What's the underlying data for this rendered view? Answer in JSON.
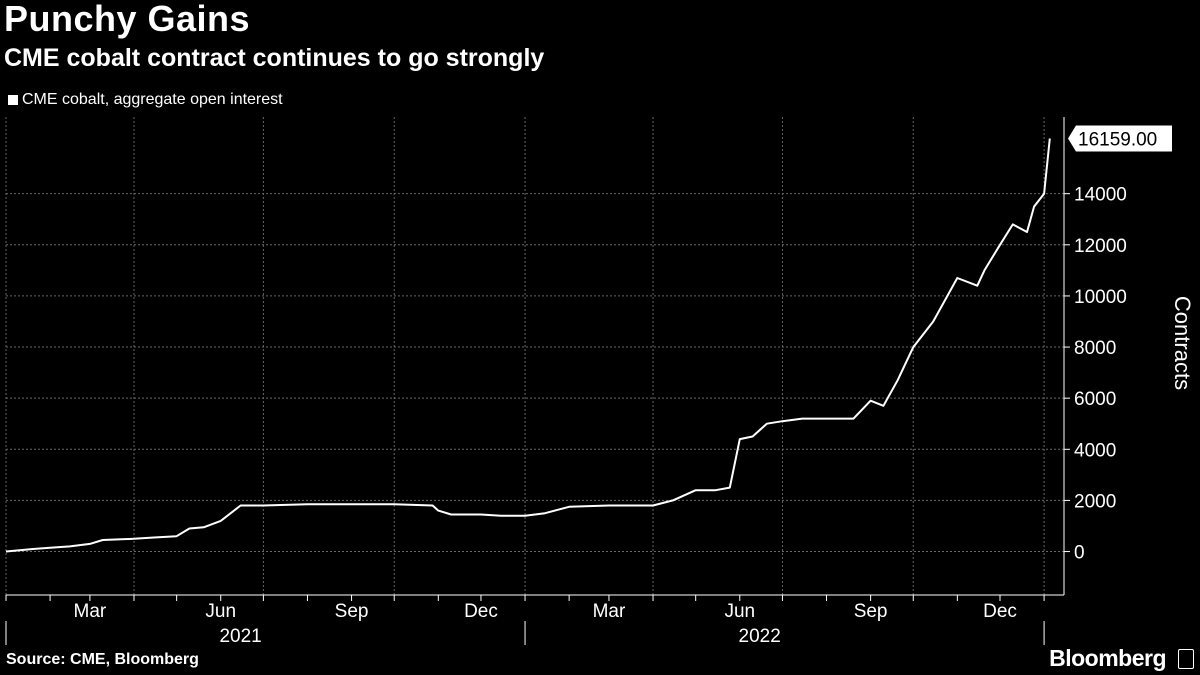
{
  "colors": {
    "background": "#000000",
    "line": "#ffffff",
    "grid": "#666666",
    "text": "#ffffff"
  },
  "chart_data": {
    "type": "line",
    "title": "Punchy Gains",
    "subtitle": "CME cobalt contract continues to go strongly",
    "legend": "CME cobalt, aggregate open interest",
    "ylabel": "Contracts",
    "xlabel": "",
    "ylim": [
      -1700,
      17000
    ],
    "y_ticks": [
      0,
      2000,
      4000,
      6000,
      8000,
      10000,
      12000,
      14000
    ],
    "y_tick_labels": [
      "0",
      "2000",
      "4000",
      "6000",
      "8000",
      "10000",
      "12000",
      "14000"
    ],
    "x_range": [
      "2021-01-01",
      "2023-01-15"
    ],
    "x_month_labels": [
      {
        "date": "2021-03-01",
        "label": "Mar"
      },
      {
        "date": "2021-06-01",
        "label": "Jun"
      },
      {
        "date": "2021-09-01",
        "label": "Sep"
      },
      {
        "date": "2021-12-01",
        "label": "Dec"
      },
      {
        "date": "2022-03-01",
        "label": "Mar"
      },
      {
        "date": "2022-06-01",
        "label": "Jun"
      },
      {
        "date": "2022-09-01",
        "label": "Sep"
      },
      {
        "date": "2022-12-01",
        "label": "Dec"
      }
    ],
    "x_year_labels": [
      {
        "date": "2021-06-15",
        "label": "2021"
      },
      {
        "date": "2022-06-15",
        "label": "2022"
      }
    ],
    "grid": true,
    "last_value": 16159.0,
    "last_value_label": "16159.00",
    "series": [
      {
        "name": "CME cobalt, aggregate open interest",
        "x": [
          "2021-01-01",
          "2021-01-20",
          "2021-02-01",
          "2021-02-15",
          "2021-03-01",
          "2021-03-10",
          "2021-04-01",
          "2021-04-15",
          "2021-05-01",
          "2021-05-10",
          "2021-05-20",
          "2021-06-01",
          "2021-06-15",
          "2021-07-01",
          "2021-08-01",
          "2021-09-01",
          "2021-10-01",
          "2021-10-28",
          "2021-11-01",
          "2021-11-10",
          "2021-12-01",
          "2021-12-15",
          "2022-01-01",
          "2022-01-15",
          "2022-02-01",
          "2022-03-01",
          "2022-03-20",
          "2022-04-01",
          "2022-04-15",
          "2022-05-01",
          "2022-05-15",
          "2022-05-25",
          "2022-06-01",
          "2022-06-10",
          "2022-06-20",
          "2022-07-01",
          "2022-07-15",
          "2022-08-01",
          "2022-08-20",
          "2022-09-01",
          "2022-09-10",
          "2022-09-20",
          "2022-10-01",
          "2022-10-15",
          "2022-10-25",
          "2022-11-01",
          "2022-11-15",
          "2022-11-20",
          "2022-12-01",
          "2022-12-10",
          "2022-12-20",
          "2022-12-25",
          "2023-01-01",
          "2023-01-05"
        ],
        "values": [
          0,
          100,
          150,
          200,
          300,
          450,
          500,
          550,
          600,
          900,
          950,
          1200,
          1800,
          1800,
          1850,
          1850,
          1850,
          1800,
          1600,
          1450,
          1450,
          1400,
          1400,
          1500,
          1750,
          1800,
          1800,
          1800,
          2000,
          2400,
          2400,
          2500,
          4400,
          4500,
          5000,
          5100,
          5200,
          5200,
          5200,
          5900,
          5700,
          6700,
          8000,
          9000,
          10000,
          10700,
          10400,
          11000,
          12000,
          12800,
          12500,
          13500,
          14000,
          16159
        ]
      }
    ]
  },
  "footer": {
    "source": "Source: CME, Bloomberg",
    "brand": "Bloomberg"
  }
}
